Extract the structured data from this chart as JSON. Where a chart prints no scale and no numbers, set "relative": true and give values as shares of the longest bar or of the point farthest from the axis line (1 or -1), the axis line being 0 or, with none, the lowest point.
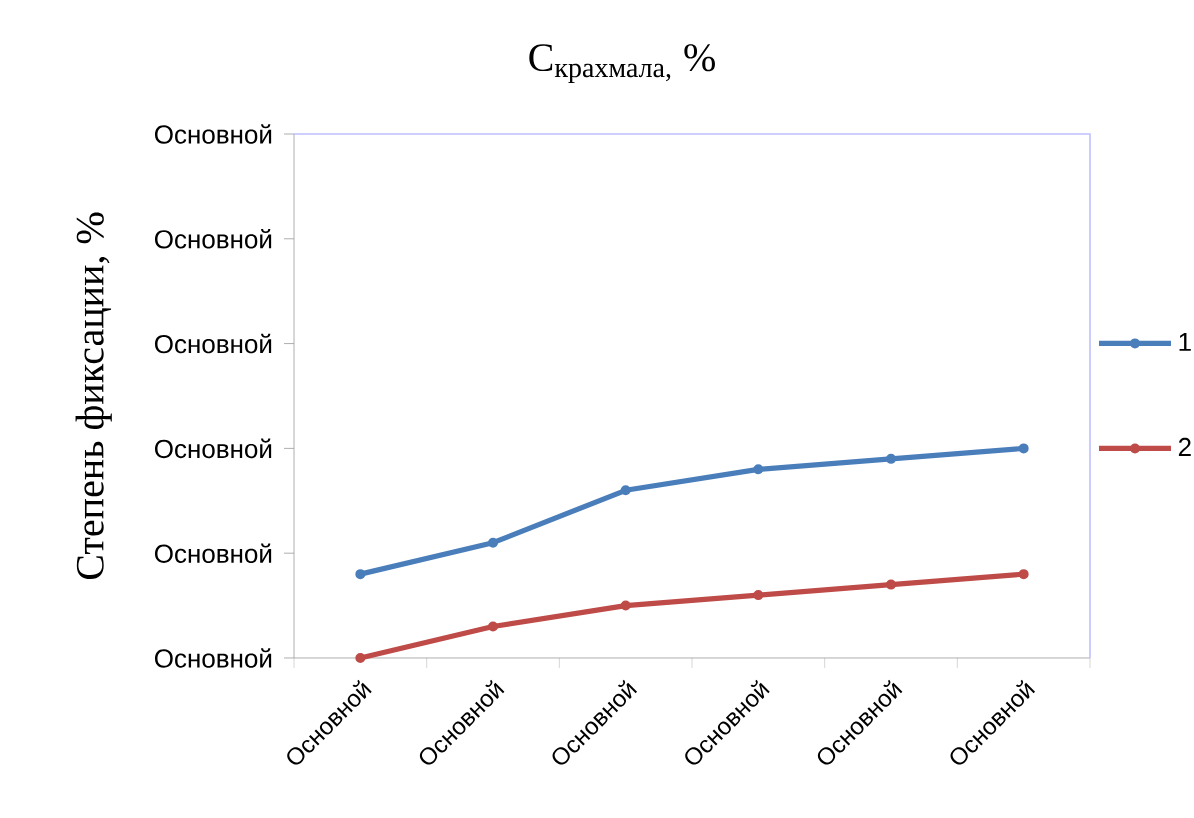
{
  "chart_data": {
    "type": "line",
    "title": "C$_{крахмала,}$ %",
    "ylabel": "Степень фиксации, %",
    "categories": [
      "Основной",
      "Основной",
      "Основной",
      "Основной",
      "Основной",
      "Основной"
    ],
    "relative": true,
    "annotations": [
      "Основной",
      "Основной",
      "Основной",
      "Основной",
      "Основной",
      "Основной"
    ],
    "series": [
      {
        "name": "1",
        "color": "#4a7ebb",
        "values": [
          0.4,
          0.55,
          0.8,
          0.9,
          0.95,
          1.0
        ]
      },
      {
        "name": "2",
        "color": "#be4b48",
        "values": [
          0.0,
          0.15,
          0.25,
          0.3,
          0.35,
          0.4
        ]
      }
    ],
    "legend": "right",
    "grid": false,
    "marker": "circle",
    "line_style": "solid"
  }
}
